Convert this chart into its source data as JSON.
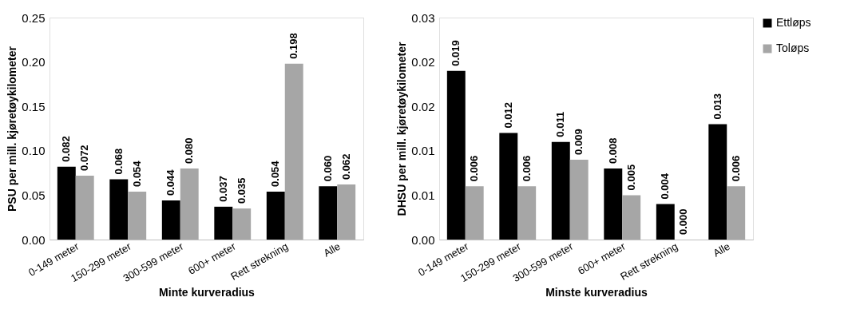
{
  "chart_data": [
    {
      "type": "bar",
      "xlabel": "Minte kurveradius",
      "ylabel": "PSU per mill. kjøretøykilometer",
      "categories": [
        "0-149 meter",
        "150-299 meter",
        "300-599 meter",
        "600+ meter",
        "Rett strekning",
        "Alle"
      ],
      "series": [
        {
          "name": "Ettløps",
          "color": "#000000",
          "values": [
            0.082,
            0.068,
            0.044,
            0.037,
            0.054,
            0.06
          ],
          "value_labels": [
            "0.082",
            "0.068",
            "0.044",
            "0.037",
            "0.054",
            "0.060"
          ]
        },
        {
          "name": "Toløps",
          "color": "#a6a6a6",
          "values": [
            0.072,
            0.054,
            0.08,
            0.035,
            0.198,
            0.062
          ],
          "value_labels": [
            "0.072",
            "0.054",
            "0.080",
            "0.035",
            "0.198",
            "0.062"
          ]
        }
      ],
      "ylim": [
        0,
        0.25
      ],
      "yticks": [
        {
          "value": 0,
          "label": "0.00"
        },
        {
          "value": 0.05,
          "label": "0.05"
        },
        {
          "value": 0.1,
          "label": "0.10"
        },
        {
          "value": 0.15,
          "label": "0.15"
        },
        {
          "value": 0.2,
          "label": "0.20"
        },
        {
          "value": 0.25,
          "label": "0.25"
        }
      ],
      "legend": "right"
    },
    {
      "type": "bar",
      "xlabel": "Minste kurveradius",
      "ylabel": "DHSU per mill. kjøretøykilometer",
      "categories": [
        "0-149 meter",
        "150-299 meter",
        "300-599 meter",
        "600+ meter",
        "Rett strekning",
        "Alle"
      ],
      "series": [
        {
          "name": "Ettløps",
          "color": "#000000",
          "values": [
            0.019,
            0.012,
            0.011,
            0.008,
            0.004,
            0.013
          ],
          "value_labels": [
            "0.019",
            "0.012",
            "0.011",
            "0.008",
            "0.004",
            "0.013"
          ]
        },
        {
          "name": "Toløps",
          "color": "#a6a6a6",
          "values": [
            0.006,
            0.006,
            0.009,
            0.005,
            0,
            0.006
          ],
          "value_labels": [
            "0.006",
            "0.006",
            "0.009",
            "0.005",
            "0.000",
            "0.006"
          ]
        }
      ],
      "ylim": [
        0,
        0.025
      ],
      "yticks": [
        {
          "value": 0,
          "label": "0.00"
        },
        {
          "value": 0.005,
          "label": "0.01"
        },
        {
          "value": 0.01,
          "label": "0.01"
        },
        {
          "value": 0.015,
          "label": "0.02"
        },
        {
          "value": 0.02,
          "label": "0.02"
        },
        {
          "value": 0.025,
          "label": "0.03"
        }
      ],
      "legend": "right"
    }
  ]
}
